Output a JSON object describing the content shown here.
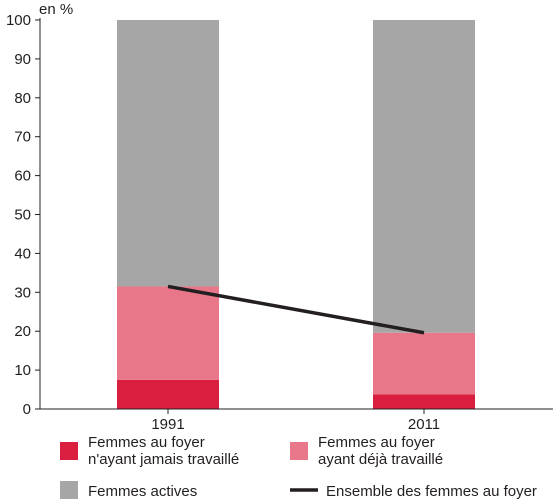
{
  "chart_data": {
    "type": "bar",
    "stacked": true,
    "unit_label": "en %",
    "categories": [
      "1991",
      "2011"
    ],
    "ylim": [
      0,
      100
    ],
    "yticks": [
      0,
      10,
      20,
      30,
      40,
      50,
      60,
      70,
      80,
      90,
      100
    ],
    "grid": false,
    "series": [
      {
        "name_lines": [
          "Femmes au foyer",
          "n'ayant jamais travaillé"
        ],
        "values": [
          7.5,
          3.8
        ],
        "color": "#d91e3f"
      },
      {
        "name_lines": [
          "Femmes au foyer",
          "ayant déjà travaillé"
        ],
        "values": [
          24.0,
          15.8
        ],
        "color": "#e8778a"
      },
      {
        "name_lines": [
          "Femmes actives"
        ],
        "values": [
          68.5,
          80.4
        ],
        "color": "#a7a6a6"
      }
    ],
    "line_series": {
      "name_lines": [
        "Ensemble des femmes au foyer"
      ],
      "values": [
        31.5,
        19.6
      ],
      "color": "#231f20"
    },
    "legend_placement": "bottom"
  }
}
